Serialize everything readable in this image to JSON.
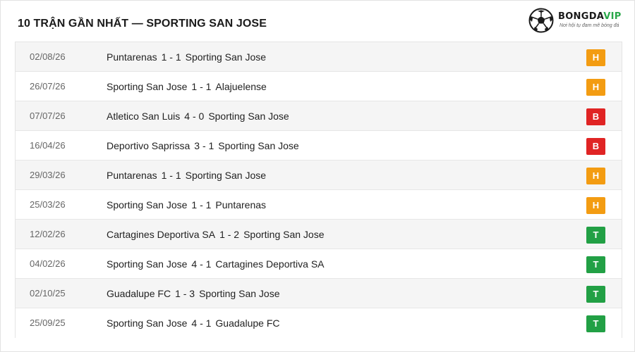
{
  "header": {
    "title": "10 TRẬN GẦN NHẤT — SPORTING SAN JOSE"
  },
  "logo": {
    "brand_main": "BONGDA",
    "brand_vip": "VIP",
    "slogan": "Nơi hội tụ đam mê bóng đá",
    "icon": "soccer-ball-icon"
  },
  "colors": {
    "H": "#f39c12",
    "B": "#e02424",
    "T": "#22a045"
  },
  "matches": [
    {
      "date": "02/08/26",
      "home": "Puntarenas",
      "score": "1 - 1",
      "away": "Sporting San Jose",
      "result": "H"
    },
    {
      "date": "26/07/26",
      "home": "Sporting San Jose",
      "score": "1 - 1",
      "away": "Alajuelense",
      "result": "H"
    },
    {
      "date": "07/07/26",
      "home": "Atletico San Luis",
      "score": "4 - 0",
      "away": "Sporting San Jose",
      "result": "B"
    },
    {
      "date": "16/04/26",
      "home": "Deportivo Saprissa",
      "score": "3 - 1",
      "away": "Sporting San Jose",
      "result": "B"
    },
    {
      "date": "29/03/26",
      "home": "Puntarenas",
      "score": "1 - 1",
      "away": "Sporting San Jose",
      "result": "H"
    },
    {
      "date": "25/03/26",
      "home": "Sporting San Jose",
      "score": "1 - 1",
      "away": "Puntarenas",
      "result": "H"
    },
    {
      "date": "12/02/26",
      "home": "Cartagines Deportiva SA",
      "score": "1 - 2",
      "away": "Sporting San Jose",
      "result": "T"
    },
    {
      "date": "04/02/26",
      "home": "Sporting San Jose",
      "score": "4 - 1",
      "away": "Cartagines Deportiva SA",
      "result": "T"
    },
    {
      "date": "02/10/25",
      "home": "Guadalupe FC",
      "score": "1 - 3",
      "away": "Sporting San Jose",
      "result": "T"
    },
    {
      "date": "25/09/25",
      "home": "Sporting San Jose",
      "score": "4 - 1",
      "away": "Guadalupe FC",
      "result": "T"
    }
  ]
}
